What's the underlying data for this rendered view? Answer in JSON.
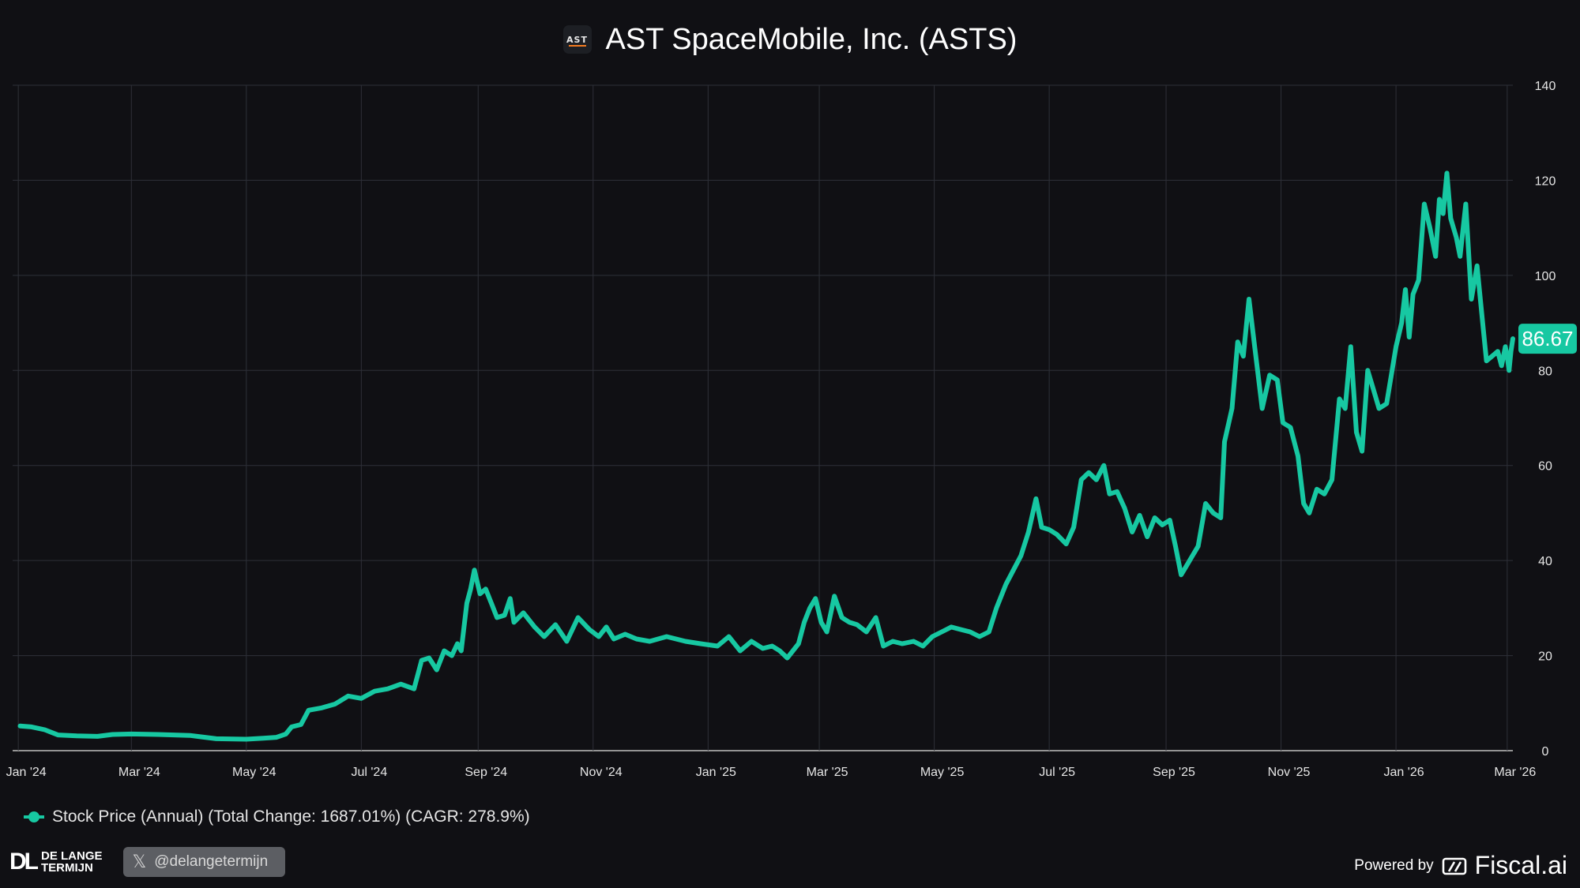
{
  "header": {
    "logo_text": "AST",
    "title": "AST SpaceMobile, Inc. (ASTS)"
  },
  "colors": {
    "background": "#101014",
    "line": "#17c8a2",
    "grid": "#2e3038",
    "axis_text": "#e6e6e6",
    "brand_orange": "#f47b20"
  },
  "legend": {
    "label": "Stock Price (Annual) (Total Change: 1687.01%) (CAGR: 278.9%)"
  },
  "last_value_label": "86.67",
  "footer": {
    "brand_mark": "DL",
    "brand_line1": "DE LANGE",
    "brand_line2": "TERMIJN",
    "x_icon": "x-logo-icon",
    "handle": "@delangetermijn",
    "powered_by": "Powered by",
    "provider": "Fiscal.ai"
  },
  "chart_data": {
    "type": "line",
    "title": "AST SpaceMobile, Inc. (ASTS)",
    "xlabel": "",
    "ylabel": "",
    "x_range": [
      "2023-12-29",
      "2026-03-04"
    ],
    "ylim": [
      0,
      140
    ],
    "y_ticks": [
      0,
      20,
      40,
      60,
      80,
      100,
      120,
      140
    ],
    "y_axis_side": "right",
    "x_ticks": [
      {
        "date": "2024-01-01",
        "label": "Jan '24"
      },
      {
        "date": "2024-03-01",
        "label": "Mar '24"
      },
      {
        "date": "2024-05-01",
        "label": "May '24"
      },
      {
        "date": "2024-07-01",
        "label": "Jul '24"
      },
      {
        "date": "2024-09-01",
        "label": "Sep '24"
      },
      {
        "date": "2024-11-01",
        "label": "Nov '24"
      },
      {
        "date": "2025-01-01",
        "label": "Jan '25"
      },
      {
        "date": "2025-03-01",
        "label": "Mar '25"
      },
      {
        "date": "2025-05-01",
        "label": "May '25"
      },
      {
        "date": "2025-07-01",
        "label": "Jul '25"
      },
      {
        "date": "2025-09-01",
        "label": "Sep '25"
      },
      {
        "date": "2025-11-01",
        "label": "Nov '25"
      },
      {
        "date": "2026-01-01",
        "label": "Jan '26"
      },
      {
        "date": "2026-03-01",
        "label": "Mar '26"
      }
    ],
    "grid": true,
    "legend_position": "bottom-left",
    "series": [
      {
        "name": "Stock Price (Annual) (Total Change: 1687.01%) (CAGR: 278.9%)",
        "points": [
          [
            "2024-01-02",
            5.2
          ],
          [
            "2024-01-08",
            5.0
          ],
          [
            "2024-01-15",
            4.4
          ],
          [
            "2024-01-22",
            3.3
          ],
          [
            "2024-02-01",
            3.1
          ],
          [
            "2024-02-12",
            3.0
          ],
          [
            "2024-02-20",
            3.4
          ],
          [
            "2024-03-01",
            3.5
          ],
          [
            "2024-03-15",
            3.4
          ],
          [
            "2024-04-01",
            3.2
          ],
          [
            "2024-04-15",
            2.5
          ],
          [
            "2024-05-01",
            2.4
          ],
          [
            "2024-05-10",
            2.6
          ],
          [
            "2024-05-17",
            2.8
          ],
          [
            "2024-05-22",
            3.5
          ],
          [
            "2024-05-25",
            5.0
          ],
          [
            "2024-05-30",
            5.5
          ],
          [
            "2024-06-03",
            8.5
          ],
          [
            "2024-06-10",
            9.0
          ],
          [
            "2024-06-17",
            9.8
          ],
          [
            "2024-06-24",
            11.5
          ],
          [
            "2024-07-01",
            11.0
          ],
          [
            "2024-07-08",
            12.5
          ],
          [
            "2024-07-15",
            13.0
          ],
          [
            "2024-07-22",
            14.0
          ],
          [
            "2024-07-29",
            13.0
          ],
          [
            "2024-08-02",
            19.0
          ],
          [
            "2024-08-06",
            19.5
          ],
          [
            "2024-08-10",
            17.0
          ],
          [
            "2024-08-14",
            21.0
          ],
          [
            "2024-08-18",
            20.0
          ],
          [
            "2024-08-21",
            22.5
          ],
          [
            "2024-08-23",
            21.0
          ],
          [
            "2024-08-26",
            31.0
          ],
          [
            "2024-08-28",
            34.0
          ],
          [
            "2024-08-30",
            38.0
          ],
          [
            "2024-09-02",
            33.0
          ],
          [
            "2024-09-05",
            34.0
          ],
          [
            "2024-09-08",
            31.0
          ],
          [
            "2024-09-11",
            28.0
          ],
          [
            "2024-09-15",
            28.5
          ],
          [
            "2024-09-18",
            32.0
          ],
          [
            "2024-09-20",
            27.0
          ],
          [
            "2024-09-25",
            29.0
          ],
          [
            "2024-10-01",
            26.0
          ],
          [
            "2024-10-06",
            24.0
          ],
          [
            "2024-10-12",
            26.5
          ],
          [
            "2024-10-18",
            23.0
          ],
          [
            "2024-10-24",
            28.0
          ],
          [
            "2024-10-30",
            25.5
          ],
          [
            "2024-11-04",
            24.0
          ],
          [
            "2024-11-08",
            26.0
          ],
          [
            "2024-11-12",
            23.5
          ],
          [
            "2024-11-18",
            24.5
          ],
          [
            "2024-11-24",
            23.5
          ],
          [
            "2024-12-01",
            23.0
          ],
          [
            "2024-12-10",
            24.0
          ],
          [
            "2024-12-20",
            23.0
          ],
          [
            "2024-12-28",
            22.5
          ],
          [
            "2025-01-06",
            22.0
          ],
          [
            "2025-01-12",
            24.0
          ],
          [
            "2025-01-18",
            21.0
          ],
          [
            "2025-01-24",
            23.0
          ],
          [
            "2025-01-30",
            21.5
          ],
          [
            "2025-02-04",
            22.0
          ],
          [
            "2025-02-08",
            21.0
          ],
          [
            "2025-02-12",
            19.5
          ],
          [
            "2025-02-15",
            21.0
          ],
          [
            "2025-02-18",
            22.5
          ],
          [
            "2025-02-21",
            27.0
          ],
          [
            "2025-02-24",
            30.0
          ],
          [
            "2025-02-27",
            32.0
          ],
          [
            "2025-03-02",
            27.0
          ],
          [
            "2025-03-05",
            25.0
          ],
          [
            "2025-03-09",
            32.5
          ],
          [
            "2025-03-13",
            28.0
          ],
          [
            "2025-03-17",
            27.0
          ],
          [
            "2025-03-21",
            26.5
          ],
          [
            "2025-03-26",
            25.0
          ],
          [
            "2025-03-31",
            28.0
          ],
          [
            "2025-04-04",
            22.0
          ],
          [
            "2025-04-09",
            23.0
          ],
          [
            "2025-04-14",
            22.5
          ],
          [
            "2025-04-20",
            23.0
          ],
          [
            "2025-04-25",
            22.0
          ],
          [
            "2025-04-30",
            24.0
          ],
          [
            "2025-05-05",
            25.0
          ],
          [
            "2025-05-10",
            26.0
          ],
          [
            "2025-05-15",
            25.5
          ],
          [
            "2025-05-20",
            25.0
          ],
          [
            "2025-05-25",
            24.0
          ],
          [
            "2025-05-30",
            25.0
          ],
          [
            "2025-06-03",
            30.0
          ],
          [
            "2025-06-08",
            35.0
          ],
          [
            "2025-06-12",
            38.0
          ],
          [
            "2025-06-16",
            41.0
          ],
          [
            "2025-06-20",
            46.0
          ],
          [
            "2025-06-24",
            53.0
          ],
          [
            "2025-06-27",
            47.0
          ],
          [
            "2025-07-01",
            46.5
          ],
          [
            "2025-07-05",
            45.5
          ],
          [
            "2025-07-10",
            43.5
          ],
          [
            "2025-07-14",
            47.0
          ],
          [
            "2025-07-18",
            57.0
          ],
          [
            "2025-07-22",
            58.5
          ],
          [
            "2025-07-26",
            57.0
          ],
          [
            "2025-07-30",
            60.0
          ],
          [
            "2025-08-02",
            54.0
          ],
          [
            "2025-08-06",
            54.5
          ],
          [
            "2025-08-10",
            51.0
          ],
          [
            "2025-08-14",
            46.0
          ],
          [
            "2025-08-18",
            49.5
          ],
          [
            "2025-08-22",
            45.0
          ],
          [
            "2025-08-26",
            49.0
          ],
          [
            "2025-08-30",
            47.5
          ],
          [
            "2025-09-03",
            48.5
          ],
          [
            "2025-09-06",
            43.0
          ],
          [
            "2025-09-09",
            37.0
          ],
          [
            "2025-09-12",
            39.0
          ],
          [
            "2025-09-15",
            41.0
          ],
          [
            "2025-09-18",
            43.0
          ],
          [
            "2025-09-22",
            52.0
          ],
          [
            "2025-09-26",
            50.0
          ],
          [
            "2025-09-30",
            49.0
          ],
          [
            "2025-10-02",
            65.0
          ],
          [
            "2025-10-06",
            72.0
          ],
          [
            "2025-10-09",
            86.0
          ],
          [
            "2025-10-12",
            83.0
          ],
          [
            "2025-10-15",
            95.0
          ],
          [
            "2025-10-18",
            85.0
          ],
          [
            "2025-10-22",
            72.0
          ],
          [
            "2025-10-26",
            79.0
          ],
          [
            "2025-10-30",
            78.0
          ],
          [
            "2025-11-02",
            69.0
          ],
          [
            "2025-11-06",
            68.0
          ],
          [
            "2025-11-10",
            62.0
          ],
          [
            "2025-11-13",
            52.0
          ],
          [
            "2025-11-16",
            50.0
          ],
          [
            "2025-11-20",
            55.0
          ],
          [
            "2025-11-24",
            54.0
          ],
          [
            "2025-11-28",
            57.0
          ],
          [
            "2025-12-02",
            74.0
          ],
          [
            "2025-12-05",
            72.0
          ],
          [
            "2025-12-08",
            85.0
          ],
          [
            "2025-12-11",
            67.0
          ],
          [
            "2025-12-14",
            63.0
          ],
          [
            "2025-12-17",
            80.0
          ],
          [
            "2025-12-20",
            76.0
          ],
          [
            "2025-12-23",
            72.0
          ],
          [
            "2025-12-27",
            73.0
          ],
          [
            "2026-01-01",
            85.0
          ],
          [
            "2026-01-04",
            90.0
          ],
          [
            "2026-01-06",
            97.0
          ],
          [
            "2026-01-08",
            87.0
          ],
          [
            "2026-01-10",
            96.0
          ],
          [
            "2026-01-13",
            99.0
          ],
          [
            "2026-01-16",
            115.0
          ],
          [
            "2026-01-19",
            110.0
          ],
          [
            "2026-01-22",
            104.0
          ],
          [
            "2026-01-24",
            116.0
          ],
          [
            "2026-01-26",
            113.0
          ],
          [
            "2026-01-28",
            121.5
          ],
          [
            "2026-01-30",
            112.0
          ],
          [
            "2026-02-02",
            108.0
          ],
          [
            "2026-02-04",
            104.0
          ],
          [
            "2026-02-07",
            115.0
          ],
          [
            "2026-02-10",
            95.0
          ],
          [
            "2026-02-13",
            102.0
          ],
          [
            "2026-02-16",
            90.0
          ],
          [
            "2026-02-18",
            82.0
          ],
          [
            "2026-02-21",
            83.0
          ],
          [
            "2026-02-24",
            84.0
          ],
          [
            "2026-02-26",
            81.0
          ],
          [
            "2026-02-28",
            85.0
          ],
          [
            "2026-03-01",
            83.0
          ],
          [
            "2026-03-02",
            80.0
          ],
          [
            "2026-03-03",
            84.0
          ],
          [
            "2026-03-04",
            86.67
          ]
        ]
      }
    ]
  }
}
